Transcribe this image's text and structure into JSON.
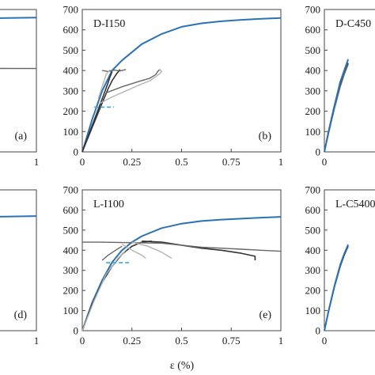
{
  "x_axis_label": "ε (%)",
  "colors": {
    "model": "#2a72b5",
    "test_dark": "#333333",
    "test_mid": "#666666",
    "test_light": "#b3b3b3",
    "marker": "#3aa7d8"
  },
  "chart_data": [
    {
      "type": "line",
      "panel": "a",
      "label": "",
      "letter": "(a)",
      "xlim": [
        0,
        1
      ],
      "ylim": [
        0,
        700
      ],
      "x_ticks": [
        1
      ],
      "y_ticks": [],
      "series": [
        {
          "role": "model",
          "x": [
            0,
            0.2,
            0.5,
            1.0
          ],
          "y": [
            640,
            646,
            652,
            660
          ]
        },
        {
          "role": "test_mid",
          "x": [
            0,
            0.5,
            1.0
          ],
          "y": [
            412,
            411,
            410
          ]
        }
      ]
    },
    {
      "type": "line",
      "panel": "b",
      "label": "D-I150",
      "letter": "(b)",
      "xlim": [
        0,
        1
      ],
      "ylim": [
        0,
        700
      ],
      "x_ticks": [
        0,
        0.25,
        0.5,
        0.75,
        1
      ],
      "x_tick_labels": [
        "0",
        "0.25",
        "0.5",
        "0.75",
        "1"
      ],
      "y_ticks": [
        0,
        100,
        200,
        300,
        400,
        500,
        600,
        700
      ],
      "series": [
        {
          "role": "model",
          "x": [
            0,
            0.05,
            0.1,
            0.15,
            0.2,
            0.3,
            0.4,
            0.5,
            0.6,
            0.7,
            0.8,
            0.9,
            1.0
          ],
          "y": [
            0,
            160,
            300,
            400,
            450,
            530,
            580,
            615,
            632,
            642,
            649,
            654,
            658
          ]
        },
        {
          "role": "test_dark",
          "x": [
            0,
            0.05,
            0.1,
            0.13,
            0.14,
            0.15
          ],
          "y": [
            0,
            130,
            260,
            340,
            370,
            395
          ]
        },
        {
          "role": "test_dark",
          "x": [
            0,
            0.05,
            0.1,
            0.13,
            0.15,
            0.17,
            0.19
          ],
          "y": [
            0,
            120,
            240,
            310,
            350,
            380,
            405
          ]
        },
        {
          "role": "test_mid",
          "x": [
            0.1,
            0.13,
            0.16,
            0.19,
            0.22
          ],
          "y": [
            400,
            395,
            402,
            398,
            405
          ]
        },
        {
          "role": "test_mid",
          "x": [
            0.12,
            0.2,
            0.28,
            0.34,
            0.37,
            0.38,
            0.39
          ],
          "y": [
            290,
            320,
            345,
            362,
            380,
            395,
            405
          ]
        },
        {
          "role": "test_light",
          "x": [
            0.09,
            0.15,
            0.22,
            0.29,
            0.34,
            0.37,
            0.39,
            0.4,
            0.39
          ],
          "y": [
            240,
            270,
            300,
            330,
            350,
            370,
            385,
            395,
            405
          ]
        },
        {
          "role": "test_light",
          "x": [
            0.08,
            0.1,
            0.12,
            0.14
          ],
          "y": [
            260,
            320,
            380,
            405
          ]
        }
      ],
      "marker_line": {
        "x": [
          0.06,
          0.16
        ],
        "y": 220
      }
    },
    {
      "type": "line",
      "panel": "c",
      "label": "D-C450",
      "letter": "",
      "xlim": [
        0,
        0.25
      ],
      "ylim": [
        0,
        700
      ],
      "x_ticks": [
        0
      ],
      "x_tick_labels": [
        "0"
      ],
      "y_ticks": [
        0,
        100,
        200,
        300,
        400,
        500,
        600,
        700
      ],
      "series": [
        {
          "role": "test_light",
          "x": [
            0,
            0.02,
            0.05,
            0.08,
            0.1,
            0.12
          ],
          "y": [
            0,
            100,
            230,
            340,
            395,
            440
          ]
        },
        {
          "role": "test_dark",
          "x": [
            0,
            0.02,
            0.05,
            0.08,
            0.1,
            0.12
          ],
          "y": [
            0,
            90,
            220,
            330,
            385,
            435
          ]
        },
        {
          "role": "test_mid",
          "x": [
            0,
            0.02,
            0.05,
            0.08,
            0.1,
            0.12
          ],
          "y": [
            0,
            85,
            210,
            320,
            380,
            430
          ]
        },
        {
          "role": "model",
          "x": [
            0,
            0.02,
            0.05,
            0.08,
            0.1,
            0.12
          ],
          "y": [
            0,
            95,
            225,
            345,
            400,
            455
          ]
        }
      ]
    },
    {
      "type": "line",
      "panel": "d",
      "label": "",
      "letter": "(d)",
      "xlim": [
        0,
        1
      ],
      "ylim": [
        0,
        700
      ],
      "x_ticks": [
        1
      ],
      "y_ticks": [],
      "series": [
        {
          "role": "model",
          "x": [
            0,
            0.5,
            1.0
          ],
          "y": [
            550,
            560,
            570
          ]
        }
      ]
    },
    {
      "type": "line",
      "panel": "e",
      "label": "L-I100",
      "letter": "(e)",
      "xlim": [
        0,
        1
      ],
      "ylim": [
        0,
        700
      ],
      "x_ticks": [
        0,
        0.25,
        0.5,
        0.75,
        1
      ],
      "x_tick_labels": [
        "0",
        "0.25",
        "0.5",
        "0.75",
        "1"
      ],
      "y_ticks": [
        0,
        100,
        200,
        300,
        400,
        500,
        600,
        700
      ],
      "series": [
        {
          "role": "model",
          "x": [
            0,
            0.05,
            0.1,
            0.15,
            0.2,
            0.25,
            0.3,
            0.4,
            0.5,
            0.6,
            0.7,
            0.8,
            0.9,
            1.0
          ],
          "y": [
            0,
            140,
            250,
            340,
            400,
            440,
            470,
            510,
            532,
            545,
            552,
            557,
            562,
            566
          ]
        },
        {
          "role": "test_dark",
          "x": [
            0,
            0.05,
            0.1,
            0.15,
            0.2,
            0.25,
            0.3,
            0.35
          ],
          "y": [
            0,
            130,
            240,
            320,
            380,
            420,
            440,
            445
          ]
        },
        {
          "role": "test_dark",
          "x": [
            0.3,
            0.4,
            0.5,
            0.6,
            0.7,
            0.8,
            0.87,
            0.87
          ],
          "y": [
            445,
            440,
            425,
            410,
            400,
            385,
            370,
            350
          ]
        },
        {
          "role": "test_mid",
          "x": [
            0,
            0.1,
            0.2,
            0.3,
            0.4,
            0.5,
            0.6,
            0.7,
            0.8,
            0.9,
            1.0
          ],
          "y": [
            440,
            440,
            438,
            437,
            435,
            425,
            415,
            410,
            405,
            400,
            395
          ]
        },
        {
          "role": "test_mid",
          "x": [
            0.1,
            0.13,
            0.16,
            0.2
          ],
          "y": [
            350,
            375,
            395,
            420
          ]
        },
        {
          "role": "test_light",
          "x": [
            0,
            0.06,
            0.12,
            0.18,
            0.22
          ],
          "y": [
            0,
            150,
            280,
            360,
            400
          ]
        },
        {
          "role": "test_light",
          "x": [
            0.25,
            0.33,
            0.4,
            0.45
          ],
          "y": [
            440,
            420,
            390,
            360
          ]
        },
        {
          "role": "test_light",
          "x": [
            0.2,
            0.25,
            0.3,
            0.32
          ],
          "y": [
            430,
            400,
            375,
            360
          ]
        }
      ],
      "marker_line": {
        "x": [
          0.12,
          0.24
        ],
        "y": 338
      }
    },
    {
      "type": "line",
      "panel": "f",
      "label": "L-C5400",
      "letter": "",
      "xlim": [
        0,
        0.25
      ],
      "ylim": [
        0,
        700
      ],
      "x_ticks": [
        0
      ],
      "x_tick_labels": [
        "0"
      ],
      "y_ticks": [
        0,
        100,
        200,
        300,
        400,
        500,
        600,
        700
      ],
      "series": [
        {
          "role": "test_light",
          "x": [
            0,
            0.02,
            0.05,
            0.08,
            0.1,
            0.12
          ],
          "y": [
            0,
            95,
            225,
            330,
            385,
            425
          ]
        },
        {
          "role": "test_dark",
          "x": [
            0,
            0.02,
            0.05,
            0.08,
            0.1,
            0.12
          ],
          "y": [
            0,
            90,
            215,
            320,
            375,
            420
          ]
        },
        {
          "role": "model",
          "x": [
            0,
            0.02,
            0.05,
            0.08,
            0.1,
            0.12
          ],
          "y": [
            0,
            93,
            220,
            328,
            382,
            428
          ]
        }
      ]
    }
  ]
}
